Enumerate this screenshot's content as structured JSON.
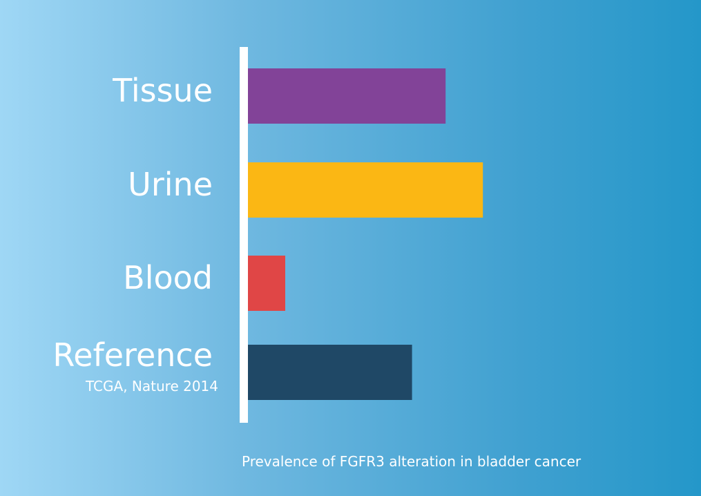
{
  "chart_data": {
    "type": "bar",
    "orientation": "horizontal",
    "categories": [
      "Tissue",
      "Urine",
      "Blood",
      "Reference"
    ],
    "category_sublabels": [
      "",
      "",
      "",
      "TCGA, Nature 2014"
    ],
    "values": [
      53,
      63,
      10,
      44
    ],
    "colors": [
      "#824398",
      "#fbb714",
      "#e04646",
      "#1f4866"
    ],
    "xlim": [
      0,
      120
    ],
    "caption": "Prevalence of FGFR3 alteration in bladder cancer",
    "grid": false,
    "legend": "none",
    "axis_line_color": "#ffffff"
  }
}
